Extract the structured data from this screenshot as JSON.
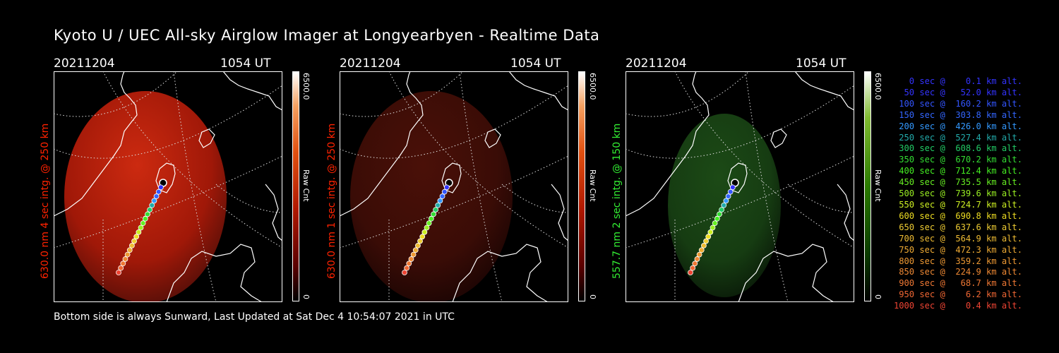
{
  "title": "Kyoto U / UEC All-sky Airglow Imager at Longyearbyen - Realtime Data",
  "footer": "Bottom side is always Sunward, Last Updated at Sat Dec  4 10:54:07 2021 in UTC",
  "panels": [
    {
      "date": "20211204",
      "time": "1054 UT",
      "ylabel": "630.0 nm 4 sec intg. @ 250 km",
      "ylabel_color": "#ff2200",
      "cbar_max": "6500.0",
      "cbar_min": "0",
      "cbar_label": "Raw Cnt",
      "cbar_color": "red",
      "glow": "bright-red"
    },
    {
      "date": "20211204",
      "time": "1054 UT",
      "ylabel": "630.0 nm 1 sec intg. @ 250 km",
      "ylabel_color": "#ff2200",
      "cbar_max": "6500.0",
      "cbar_min": "0",
      "cbar_label": "Raw Cnt",
      "cbar_color": "red",
      "glow": "dim-red"
    },
    {
      "date": "20211204",
      "time": "1054 UT",
      "ylabel": "557.7 nm 2 sec intg. @ 150 km",
      "ylabel_color": "#33ee33",
      "cbar_max": "6500.0",
      "cbar_min": "0",
      "cbar_label": "Raw Cnt",
      "cbar_color": "green",
      "glow": "green"
    }
  ],
  "legend": [
    {
      "text": "   0 sec @    0.1 km alt.",
      "color": "#3333ff"
    },
    {
      "text": "  50 sec @   52.0 km alt.",
      "color": "#3333ff"
    },
    {
      "text": " 100 sec @  160.2 km alt.",
      "color": "#3355ff"
    },
    {
      "text": " 150 sec @  303.8 km alt.",
      "color": "#3366ff"
    },
    {
      "text": " 200 sec @  426.0 km alt.",
      "color": "#3399ff"
    },
    {
      "text": " 250 sec @  527.4 km alt.",
      "color": "#22aaaa"
    },
    {
      "text": " 300 sec @  608.6 km alt.",
      "color": "#22cc66"
    },
    {
      "text": " 350 sec @  670.2 km alt.",
      "color": "#33dd33"
    },
    {
      "text": " 400 sec @  712.4 km alt.",
      "color": "#44ee22"
    },
    {
      "text": " 450 sec @  735.5 km alt.",
      "color": "#66ee22"
    },
    {
      "text": " 500 sec @  739.6 km alt.",
      "color": "#99ee22"
    },
    {
      "text": " 550 sec @  724.7 km alt.",
      "color": "#ccee22"
    },
    {
      "text": " 600 sec @  690.8 km alt.",
      "color": "#eedd22"
    },
    {
      "text": " 650 sec @  637.6 km alt.",
      "color": "#eecc33"
    },
    {
      "text": " 700 sec @  564.9 km alt.",
      "color": "#eebb33"
    },
    {
      "text": " 750 sec @  472.3 km alt.",
      "color": "#eeaa33"
    },
    {
      "text": " 800 sec @  359.2 km alt.",
      "color": "#ee9933"
    },
    {
      "text": " 850 sec @  224.9 km alt.",
      "color": "#ee8833"
    },
    {
      "text": " 900 sec @   68.7 km alt.",
      "color": "#ee7733"
    },
    {
      "text": " 950 sec @    6.2 km alt.",
      "color": "#ee6633"
    },
    {
      "text": "1000 sec @    0.4 km alt.",
      "color": "#ee4433"
    }
  ]
}
